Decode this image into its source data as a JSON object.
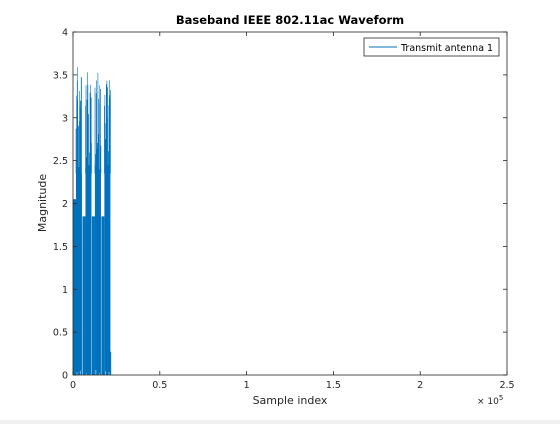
{
  "chart_data": {
    "type": "line",
    "title": "Baseband IEEE 802.11ac Waveform",
    "xlabel": "Sample index",
    "ylabel": "Magnitude",
    "x_exponent_label": "× 10",
    "x_exponent_power": "5",
    "xlim": [
      0,
      2.5
    ],
    "ylim": [
      0,
      4
    ],
    "xticks": [
      0,
      0.5,
      1,
      1.5,
      2,
      2.5
    ],
    "xtick_labels": [
      "0",
      "0.5",
      "1",
      "1.5",
      "2",
      "2.5"
    ],
    "yticks": [
      0,
      0.5,
      1,
      1.5,
      2,
      2.5,
      3,
      3.5,
      4
    ],
    "ytick_labels": [
      "0",
      "0.5",
      "1",
      "1.5",
      "2",
      "2.5",
      "3",
      "3.5",
      "4"
    ],
    "x_unit_scale": 100000,
    "grid": false,
    "legend_position": "top-right",
    "series": [
      {
        "name": "Transmit antenna 1",
        "color": "#0072bd",
        "packets": [
          {
            "x_start": 0.0,
            "x_end": 0.0515,
            "preamble_peak": 2.05,
            "body_level": 2.35,
            "peak": 3.55
          },
          {
            "x_start": 0.0545,
            "x_end": 0.1065,
            "preamble_peak": 1.85,
            "body_level": 2.35,
            "peak": 3.55
          },
          {
            "x_start": 0.109,
            "x_end": 0.161,
            "preamble_peak": 1.85,
            "body_level": 2.35,
            "peak": 3.55
          },
          {
            "x_start": 0.1635,
            "x_end": 0.2155,
            "preamble_peak": 1.85,
            "body_level": 2.35,
            "peak": 3.55
          }
        ],
        "trailing_spike": {
          "x": 0.217,
          "value": 0.27
        }
      }
    ]
  }
}
